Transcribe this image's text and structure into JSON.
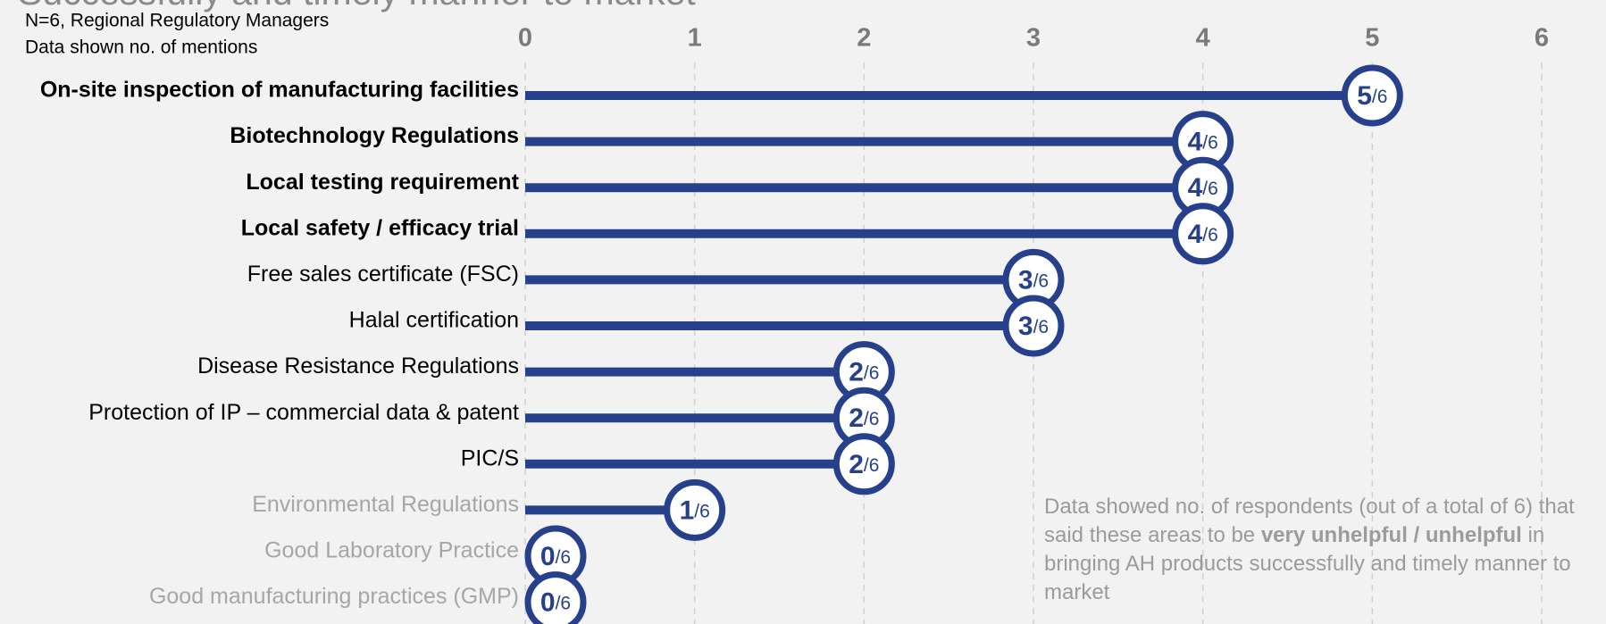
{
  "chart_data": {
    "type": "lollipop",
    "title": "Successfully and timely manner to market",
    "subtitle": [
      "N=6, Regional Regulatory Managers",
      "Data shown no. of mentions"
    ],
    "categories": [
      "On-site inspection of manufacturing facilities",
      "Biotechnology Regulations",
      "Local testing requirement",
      "Local safety / efficacy trial",
      "Free sales certificate (FSC)",
      "Halal certification",
      "Disease Resistance Regulations",
      "Protection of IP – commercial data & patent",
      "PIC/S",
      "Environmental Regulations",
      "Good Laboratory Practice",
      "Good manufacturing practices (GMP)"
    ],
    "category_styles": [
      "bold",
      "bold",
      "bold",
      "bold",
      "normal",
      "normal",
      "normal",
      "normal",
      "normal",
      "muted",
      "muted",
      "muted"
    ],
    "values": [
      5,
      4,
      4,
      4,
      3,
      3,
      2,
      2,
      2,
      1,
      0,
      0
    ],
    "value_labels": [
      "5/6",
      "4/6",
      "4/6",
      "4/6",
      "3/6",
      "3/6",
      "2/6",
      "2/6",
      "2/6",
      "1/6",
      "0/6",
      "0/6"
    ],
    "color": "#27408b",
    "xlim": [
      0,
      6
    ],
    "xticks": [
      0,
      1,
      2,
      3,
      4,
      5,
      6
    ],
    "grid": true,
    "annotation": [
      {
        "text": "Data showed no. of respondents (out of a total of 6) that said these areas to be ",
        "bold": false
      },
      {
        "text": "very unhelpful / unhelpful",
        "bold": true
      },
      {
        "text": " in bringing AH products successfully and timely manner to market",
        "bold": false
      }
    ]
  }
}
